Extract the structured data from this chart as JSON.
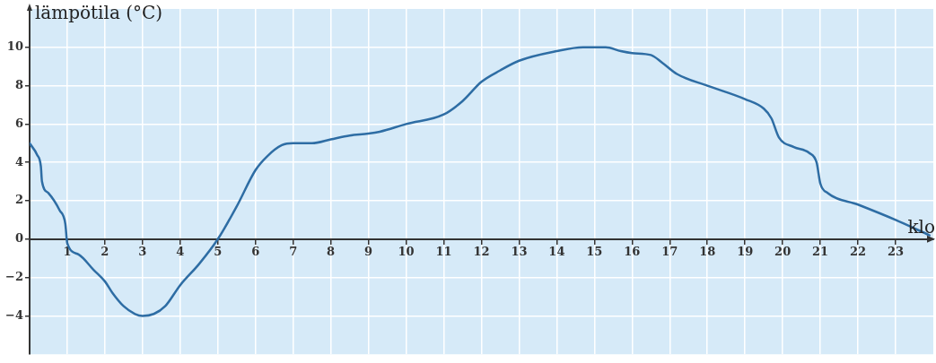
{
  "chart_data": {
    "type": "line",
    "xlabel": "klo",
    "ylabel": "lämpötila (°C)",
    "xlim": [
      0,
      24
    ],
    "ylim": [
      -6,
      12
    ],
    "xticks": [
      1,
      2,
      3,
      4,
      5,
      6,
      7,
      8,
      9,
      10,
      11,
      12,
      13,
      14,
      15,
      16,
      17,
      18,
      19,
      20,
      21,
      22,
      23
    ],
    "yticks": [
      -4,
      -2,
      0,
      2,
      4,
      6,
      8,
      10
    ],
    "grid": true,
    "legend": false,
    "marker": "none",
    "line_style": "solid",
    "series": [
      {
        "color": "#2e6da4",
        "x": [
          0,
          0.2,
          0.3,
          0.33,
          0.5,
          0.8,
          0.95,
          1.0,
          1.3,
          1.7,
          2.0,
          2.2,
          2.5,
          2.8,
          3.0,
          3.3,
          3.6,
          4.0,
          4.5,
          5.0,
          5.5,
          6.0,
          6.3,
          6.7,
          7.0,
          7.5,
          8.0,
          8.5,
          9.0,
          9.3,
          10.0,
          11.0,
          11.5,
          12.0,
          12.5,
          13.0,
          14.0,
          14.7,
          15.3,
          15.7,
          16.0,
          16.5,
          16.8,
          17.2,
          18.0,
          19.0,
          19.5,
          19.7,
          19.9,
          20.3,
          20.7,
          20.9,
          21.0,
          21.2,
          22.0,
          23.0,
          23.9
        ],
        "values": [
          5,
          4.4,
          3.8,
          3.0,
          2.4,
          1.5,
          0.8,
          -0.2,
          -0.8,
          -1.6,
          -2.2,
          -2.8,
          -3.5,
          -3.9,
          -4.0,
          -3.9,
          -3.5,
          -2.4,
          -1.3,
          0,
          1.7,
          3.6,
          4.3,
          4.9,
          5.0,
          5.0,
          5.2,
          5.4,
          5.5,
          5.6,
          6.0,
          6.5,
          7.2,
          8.2,
          8.8,
          9.3,
          9.8,
          10.0,
          10.0,
          9.8,
          9.7,
          9.6,
          9.2,
          8.6,
          8.0,
          7.3,
          6.8,
          6.3,
          5.3,
          4.8,
          4.5,
          4.0,
          2.9,
          2.4,
          1.8,
          1.0,
          0.2
        ]
      }
    ]
  }
}
